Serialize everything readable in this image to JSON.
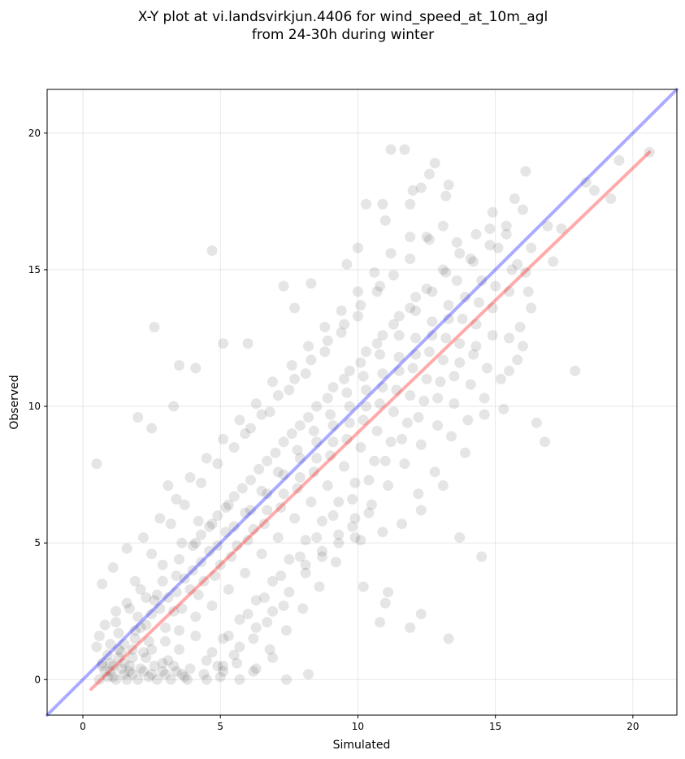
{
  "chart_data": {
    "type": "scatter",
    "title_line1": "X-Y plot at vi.landsvirkjun.4406 for wind_speed_at_10m_agl",
    "title_line2": "from 24-30h during winter",
    "xlabel": "Simulated",
    "ylabel": "Observed",
    "xlim": [
      -1.3,
      21.6
    ],
    "ylim": [
      -1.3,
      21.6
    ],
    "xticks": [
      0,
      5,
      10,
      15,
      20
    ],
    "yticks": [
      0,
      5,
      10,
      15,
      20
    ],
    "grid": true,
    "point_color": "#000000",
    "point_opacity": 0.1,
    "identity_line": {
      "color": "#0000ff",
      "opacity": 0.33,
      "from": [
        -1.3,
        -1.3
      ],
      "to": [
        21.6,
        21.6
      ]
    },
    "regression_line": {
      "color": "#ff0000",
      "opacity": 0.33,
      "from": [
        0.3,
        -0.35
      ],
      "to": [
        20.6,
        19.3
      ]
    },
    "points": [
      [
        0.5,
        7.9
      ],
      [
        4.7,
        15.7
      ],
      [
        2.5,
        9.2
      ],
      [
        11.2,
        19.4
      ],
      [
        11.7,
        19.4
      ],
      [
        20.6,
        19.3
      ],
      [
        19.5,
        19.0
      ],
      [
        18.3,
        18.2
      ],
      [
        17.9,
        11.3
      ],
      [
        16.8,
        8.7
      ],
      [
        16.5,
        9.4
      ],
      [
        16.1,
        18.6
      ],
      [
        13.3,
        1.5
      ],
      [
        12.3,
        2.4
      ],
      [
        11.9,
        1.9
      ],
      [
        14.5,
        4.5
      ],
      [
        10.8,
        2.1
      ],
      [
        11.0,
        2.8
      ],
      [
        11.1,
        3.2
      ],
      [
        10.2,
        3.4
      ],
      [
        8.2,
        0.2
      ],
      [
        7.4,
        0.0
      ],
      [
        9.9,
        5.2
      ],
      [
        13.7,
        5.2
      ],
      [
        15.7,
        17.6
      ],
      [
        14.9,
        17.1
      ],
      [
        13.3,
        18.1
      ],
      [
        12.8,
        18.9
      ],
      [
        12.3,
        18.0
      ],
      [
        3.1,
        7.1
      ],
      [
        2.0,
        9.6
      ],
      [
        3.3,
        10.0
      ],
      [
        3.5,
        11.5
      ],
      [
        4.1,
        11.4
      ],
      [
        2.6,
        12.9
      ],
      [
        5.1,
        12.3
      ],
      [
        6.0,
        12.3
      ],
      [
        7.3,
        14.4
      ],
      [
        7.7,
        13.6
      ],
      [
        8.3,
        14.5
      ],
      [
        9.6,
        15.2
      ],
      [
        10.0,
        15.8
      ],
      [
        10.9,
        17.4
      ],
      [
        10.3,
        17.4
      ],
      [
        11.0,
        16.8
      ],
      [
        11.9,
        17.4
      ],
      [
        12.5,
        16.2
      ],
      [
        13.1,
        16.6
      ],
      [
        13.6,
        16.0
      ],
      [
        14.1,
        15.4
      ],
      [
        14.8,
        16.5
      ],
      [
        15.4,
        16.3
      ],
      [
        15.8,
        15.2
      ],
      [
        16.3,
        13.6
      ],
      [
        16.0,
        12.2
      ],
      [
        15.5,
        11.3
      ],
      [
        15.3,
        9.9
      ],
      [
        14.6,
        9.7
      ],
      [
        13.9,
        8.3
      ],
      [
        13.1,
        7.1
      ],
      [
        12.3,
        6.2
      ],
      [
        11.6,
        5.7
      ],
      [
        10.9,
        5.4
      ],
      [
        10.1,
        5.1
      ],
      [
        9.3,
        5.0
      ],
      [
        8.7,
        4.5
      ],
      [
        8.1,
        3.9
      ],
      [
        7.3,
        2.7
      ],
      [
        6.7,
        2.1
      ],
      [
        6.2,
        1.5
      ],
      [
        5.5,
        0.9
      ],
      [
        4.9,
        0.5
      ],
      [
        4.4,
        0.2
      ],
      [
        3.7,
        0.1
      ],
      [
        3.0,
        0.2
      ],
      [
        2.4,
        0.1
      ],
      [
        1.7,
        0.3
      ],
      [
        1.1,
        0.1
      ],
      [
        0.7,
        0.5
      ],
      [
        0.5,
        1.2
      ],
      [
        0.8,
        2.0
      ],
      [
        1.2,
        2.5
      ],
      [
        1.9,
        3.6
      ],
      [
        2.5,
        4.6
      ],
      [
        3.2,
        5.7
      ],
      [
        3.7,
        6.4
      ],
      [
        4.3,
        7.2
      ],
      [
        4.9,
        7.9
      ],
      [
        5.5,
        8.5
      ],
      [
        6.1,
        9.2
      ],
      [
        6.8,
        9.8
      ],
      [
        7.5,
        10.6
      ],
      [
        8.1,
        11.2
      ],
      [
        8.8,
        12.0
      ],
      [
        9.4,
        12.7
      ],
      [
        10.0,
        13.3
      ],
      [
        10.7,
        14.2
      ],
      [
        11.3,
        14.8
      ],
      [
        11.9,
        15.4
      ],
      [
        12.6,
        16.1
      ],
      [
        13.2,
        14.9
      ],
      [
        12.7,
        14.2
      ],
      [
        12.1,
        13.5
      ],
      [
        11.5,
        12.6
      ],
      [
        10.8,
        11.9
      ],
      [
        10.2,
        11.1
      ],
      [
        9.6,
        10.5
      ],
      [
        9.0,
        9.7
      ],
      [
        8.4,
        9.1
      ],
      [
        7.8,
        8.4
      ],
      [
        7.1,
        7.6
      ],
      [
        6.5,
        6.9
      ],
      [
        5.9,
        6.1
      ],
      [
        5.2,
        5.4
      ],
      [
        4.6,
        4.7
      ],
      [
        4.0,
        4.0
      ],
      [
        3.4,
        3.2
      ],
      [
        2.8,
        2.6
      ],
      [
        2.1,
        1.9
      ],
      [
        1.5,
        1.3
      ],
      [
        1.8,
        0.8
      ],
      [
        2.4,
        1.4
      ],
      [
        3.0,
        1.9
      ],
      [
        3.6,
        2.6
      ],
      [
        4.2,
        3.1
      ],
      [
        4.8,
        3.8
      ],
      [
        5.4,
        4.5
      ],
      [
        6.0,
        5.1
      ],
      [
        6.6,
        5.7
      ],
      [
        7.2,
        6.3
      ],
      [
        7.8,
        7.0
      ],
      [
        8.4,
        7.6
      ],
      [
        9.0,
        8.2
      ],
      [
        9.6,
        8.8
      ],
      [
        10.2,
        9.5
      ],
      [
        10.8,
        10.1
      ],
      [
        11.4,
        10.6
      ],
      [
        12.0,
        11.4
      ],
      [
        12.6,
        12.0
      ],
      [
        13.2,
        12.5
      ],
      [
        13.8,
        13.2
      ],
      [
        14.4,
        13.8
      ],
      [
        15.0,
        14.4
      ],
      [
        15.6,
        15.0
      ],
      [
        14.2,
        11.9
      ],
      [
        13.5,
        11.1
      ],
      [
        12.9,
        10.3
      ],
      [
        12.2,
        9.6
      ],
      [
        11.6,
        8.8
      ],
      [
        11.0,
        8.0
      ],
      [
        10.4,
        7.3
      ],
      [
        9.8,
        6.6
      ],
      [
        9.1,
        6.0
      ],
      [
        8.5,
        5.2
      ],
      [
        7.9,
        4.5
      ],
      [
        7.2,
        3.8
      ],
      [
        6.6,
        3.0
      ],
      [
        6.0,
        2.4
      ],
      [
        5.3,
        1.6
      ],
      [
        4.7,
        1.0
      ],
      [
        4.1,
        1.6
      ],
      [
        3.5,
        1.1
      ],
      [
        2.9,
        0.6
      ],
      [
        2.2,
        0.3
      ],
      [
        1.6,
        0.0
      ],
      [
        1.0,
        0.6
      ],
      [
        0.6,
        0.0
      ],
      [
        0.9,
        0.9
      ],
      [
        1.4,
        0.4
      ],
      [
        2.0,
        0.0
      ],
      [
        2.6,
        0.5
      ],
      [
        3.2,
        0.0
      ],
      [
        3.9,
        0.4
      ],
      [
        4.5,
        0.0
      ],
      [
        5.1,
        0.3
      ],
      [
        5.7,
        0.0
      ],
      [
        6.3,
        0.4
      ],
      [
        6.9,
        0.8
      ],
      [
        1.3,
        1.7
      ],
      [
        2.0,
        2.3
      ],
      [
        2.7,
        3.1
      ],
      [
        3.4,
        3.8
      ],
      [
        4.0,
        4.9
      ],
      [
        4.6,
        5.6
      ],
      [
        5.2,
        6.3
      ],
      [
        5.8,
        7.0
      ],
      [
        6.4,
        7.7
      ],
      [
        7.0,
        8.3
      ],
      [
        7.6,
        9.0
      ],
      [
        8.2,
        9.6
      ],
      [
        8.9,
        10.3
      ],
      [
        9.5,
        11.0
      ],
      [
        10.1,
        11.6
      ],
      [
        10.7,
        12.3
      ],
      [
        11.3,
        13.0
      ],
      [
        11.9,
        13.6
      ],
      [
        12.5,
        14.3
      ],
      [
        13.1,
        15.0
      ],
      [
        13.7,
        15.6
      ],
      [
        14.3,
        16.3
      ],
      [
        14.9,
        12.6
      ],
      [
        14.3,
        12.2
      ],
      [
        13.7,
        11.6
      ],
      [
        13.0,
        10.9
      ],
      [
        12.4,
        10.2
      ],
      [
        11.8,
        9.4
      ],
      [
        11.2,
        8.7
      ],
      [
        10.6,
        8.0
      ],
      [
        9.9,
        7.2
      ],
      [
        9.3,
        6.5
      ],
      [
        8.7,
        5.8
      ],
      [
        8.1,
        5.1
      ],
      [
        7.5,
        4.4
      ],
      [
        6.9,
        3.6
      ],
      [
        6.3,
        2.9
      ],
      [
        5.7,
        2.2
      ],
      [
        5.1,
        1.5
      ],
      [
        4.5,
        0.7
      ],
      [
        3.8,
        0.0
      ],
      [
        3.3,
        0.5
      ],
      [
        0.7,
        3.5
      ],
      [
        1.1,
        4.1
      ],
      [
        1.6,
        4.8
      ],
      [
        2.2,
        5.2
      ],
      [
        2.8,
        5.9
      ],
      [
        3.4,
        6.6
      ],
      [
        3.9,
        7.4
      ],
      [
        4.5,
        8.1
      ],
      [
        5.1,
        8.8
      ],
      [
        5.7,
        9.5
      ],
      [
        6.3,
        10.1
      ],
      [
        6.9,
        10.9
      ],
      [
        7.6,
        11.5
      ],
      [
        8.2,
        12.2
      ],
      [
        8.8,
        12.9
      ],
      [
        9.4,
        13.5
      ],
      [
        10.0,
        14.2
      ],
      [
        10.6,
        14.9
      ],
      [
        11.2,
        15.6
      ],
      [
        11.9,
        16.2
      ],
      [
        1.2,
        0.0
      ],
      [
        1.5,
        0.6
      ],
      [
        1.8,
        0.2
      ],
      [
        2.3,
        0.8
      ],
      [
        2.7,
        0.0
      ],
      [
        3.1,
        0.7
      ],
      [
        3.6,
        0.2
      ],
      [
        0.8,
        0.3
      ],
      [
        1.0,
        1.3
      ],
      [
        1.4,
        1.0
      ],
      [
        1.9,
        1.5
      ],
      [
        2.5,
        1.1
      ],
      [
        3.0,
        1.4
      ],
      [
        3.5,
        1.8
      ],
      [
        4.1,
        2.3
      ],
      [
        4.7,
        2.7
      ],
      [
        5.3,
        3.3
      ],
      [
        5.9,
        3.9
      ],
      [
        6.5,
        4.6
      ],
      [
        7.1,
        5.2
      ],
      [
        7.7,
        5.9
      ],
      [
        8.3,
        6.5
      ],
      [
        8.9,
        7.1
      ],
      [
        9.5,
        7.8
      ],
      [
        10.1,
        8.5
      ],
      [
        10.7,
        9.1
      ],
      [
        11.3,
        9.8
      ],
      [
        11.9,
        10.4
      ],
      [
        12.5,
        11.0
      ],
      [
        13.1,
        11.7
      ],
      [
        13.7,
        12.3
      ],
      [
        14.3,
        13.0
      ],
      [
        14.9,
        13.6
      ],
      [
        15.5,
        14.2
      ],
      [
        16.1,
        14.9
      ],
      [
        12.8,
        7.6
      ],
      [
        12.2,
        6.8
      ],
      [
        13.4,
        8.9
      ],
      [
        14.0,
        9.5
      ],
      [
        14.6,
        10.3
      ],
      [
        15.2,
        11.0
      ],
      [
        15.8,
        11.7
      ],
      [
        13.6,
        14.6
      ],
      [
        14.2,
        15.3
      ],
      [
        14.8,
        15.9
      ],
      [
        15.4,
        16.6
      ],
      [
        16.0,
        17.2
      ],
      [
        12.0,
        17.9
      ],
      [
        12.6,
        18.5
      ],
      [
        13.2,
        17.7
      ],
      [
        10.4,
        6.1
      ],
      [
        9.8,
        5.6
      ],
      [
        9.2,
        4.3
      ],
      [
        8.6,
        3.4
      ],
      [
        8.0,
        2.6
      ],
      [
        7.4,
        1.8
      ],
      [
        6.8,
        1.1
      ],
      [
        6.2,
        0.3
      ],
      [
        5.6,
        0.6
      ],
      [
        5.0,
        0.1
      ],
      [
        2.3,
        2.0
      ],
      [
        2.6,
        2.9
      ],
      [
        3.3,
        2.5
      ],
      [
        3.9,
        3.3
      ],
      [
        4.4,
        3.6
      ],
      [
        5.0,
        4.2
      ],
      [
        5.6,
        4.9
      ],
      [
        6.2,
        5.5
      ],
      [
        6.7,
        6.2
      ],
      [
        7.3,
        6.8
      ],
      [
        7.9,
        7.4
      ],
      [
        8.5,
        8.1
      ],
      [
        9.1,
        8.7
      ],
      [
        9.7,
        9.4
      ],
      [
        10.3,
        10.0
      ],
      [
        10.9,
        10.7
      ],
      [
        11.5,
        11.3
      ],
      [
        12.1,
        11.9
      ],
      [
        12.7,
        12.6
      ],
      [
        13.3,
        13.2
      ],
      [
        4.3,
        5.3
      ],
      [
        4.9,
        6.0
      ],
      [
        5.5,
        6.7
      ],
      [
        6.1,
        7.3
      ],
      [
        6.7,
        8.0
      ],
      [
        7.3,
        8.7
      ],
      [
        7.9,
        9.3
      ],
      [
        8.5,
        10.0
      ],
      [
        9.1,
        10.7
      ],
      [
        9.7,
        11.3
      ],
      [
        10.3,
        12.0
      ],
      [
        10.9,
        12.6
      ],
      [
        11.5,
        13.3
      ],
      [
        12.1,
        14.0
      ],
      [
        5.9,
        9.0
      ],
      [
        6.5,
        9.7
      ],
      [
        7.1,
        10.4
      ],
      [
        7.7,
        11.0
      ],
      [
        8.3,
        11.7
      ],
      [
        8.9,
        12.4
      ],
      [
        9.5,
        13.0
      ],
      [
        10.1,
        13.7
      ],
      [
        10.8,
        14.4
      ],
      [
        1.6,
        2.8
      ],
      [
        2.1,
        3.3
      ],
      [
        2.9,
        4.2
      ],
      [
        3.6,
        5.0
      ],
      [
        4.2,
        5.8
      ],
      [
        1.0,
        0.3
      ],
      [
        1.3,
        0.8
      ],
      [
        1.7,
        0.5
      ],
      [
        2.1,
        0.4
      ],
      [
        2.5,
        0.2
      ],
      [
        2.9,
        0.3
      ],
      [
        3.4,
        0.3
      ],
      [
        0.9,
        0.1
      ],
      [
        1.1,
        0.5
      ],
      [
        1.5,
        0.2
      ],
      [
        1.8,
        1.1
      ],
      [
        2.2,
        1.0
      ],
      [
        16.2,
        14.2
      ],
      [
        15.9,
        12.9
      ],
      [
        15.5,
        12.5
      ],
      [
        14.7,
        11.4
      ],
      [
        14.1,
        10.8
      ],
      [
        13.5,
        10.1
      ],
      [
        12.9,
        9.3
      ],
      [
        12.3,
        8.6
      ],
      [
        11.7,
        7.9
      ],
      [
        11.1,
        7.1
      ],
      [
        10.5,
        6.4
      ],
      [
        9.9,
        5.9
      ],
      [
        9.3,
        5.3
      ],
      [
        8.7,
        4.7
      ],
      [
        8.1,
        4.2
      ],
      [
        7.5,
        3.2
      ],
      [
        6.9,
        2.5
      ],
      [
        6.3,
        1.9
      ],
      [
        5.7,
        1.2
      ],
      [
        5.1,
        0.5
      ],
      [
        19.2,
        17.6
      ],
      [
        18.6,
        17.9
      ],
      [
        17.4,
        16.5
      ],
      [
        16.9,
        16.6
      ],
      [
        16.3,
        15.8
      ],
      [
        17.1,
        15.3
      ],
      [
        15.1,
        15.8
      ],
      [
        14.5,
        14.6
      ],
      [
        13.9,
        14.0
      ],
      [
        13.3,
        13.7
      ],
      [
        12.7,
        13.1
      ],
      [
        12.1,
        12.5
      ],
      [
        11.5,
        11.8
      ],
      [
        10.9,
        11.2
      ],
      [
        10.3,
        10.6
      ],
      [
        9.7,
        10.0
      ],
      [
        9.1,
        9.3
      ],
      [
        8.5,
        8.7
      ],
      [
        7.9,
        8.1
      ],
      [
        7.3,
        7.5
      ],
      [
        6.7,
        6.8
      ],
      [
        6.1,
        6.2
      ],
      [
        5.5,
        5.6
      ],
      [
        4.9,
        4.9
      ],
      [
        4.3,
        4.3
      ],
      [
        3.7,
        3.7
      ],
      [
        3.1,
        3.0
      ],
      [
        2.5,
        2.4
      ],
      [
        1.9,
        1.8
      ],
      [
        1.3,
        1.1
      ],
      [
        0.7,
        0.6
      ],
      [
        0.6,
        1.6
      ],
      [
        1.2,
        2.1
      ],
      [
        1.7,
        2.6
      ],
      [
        2.3,
        3.0
      ],
      [
        2.9,
        3.6
      ],
      [
        3.5,
        4.4
      ],
      [
        4.1,
        5.0
      ],
      [
        4.7,
        5.7
      ],
      [
        5.3,
        6.4
      ]
    ]
  }
}
